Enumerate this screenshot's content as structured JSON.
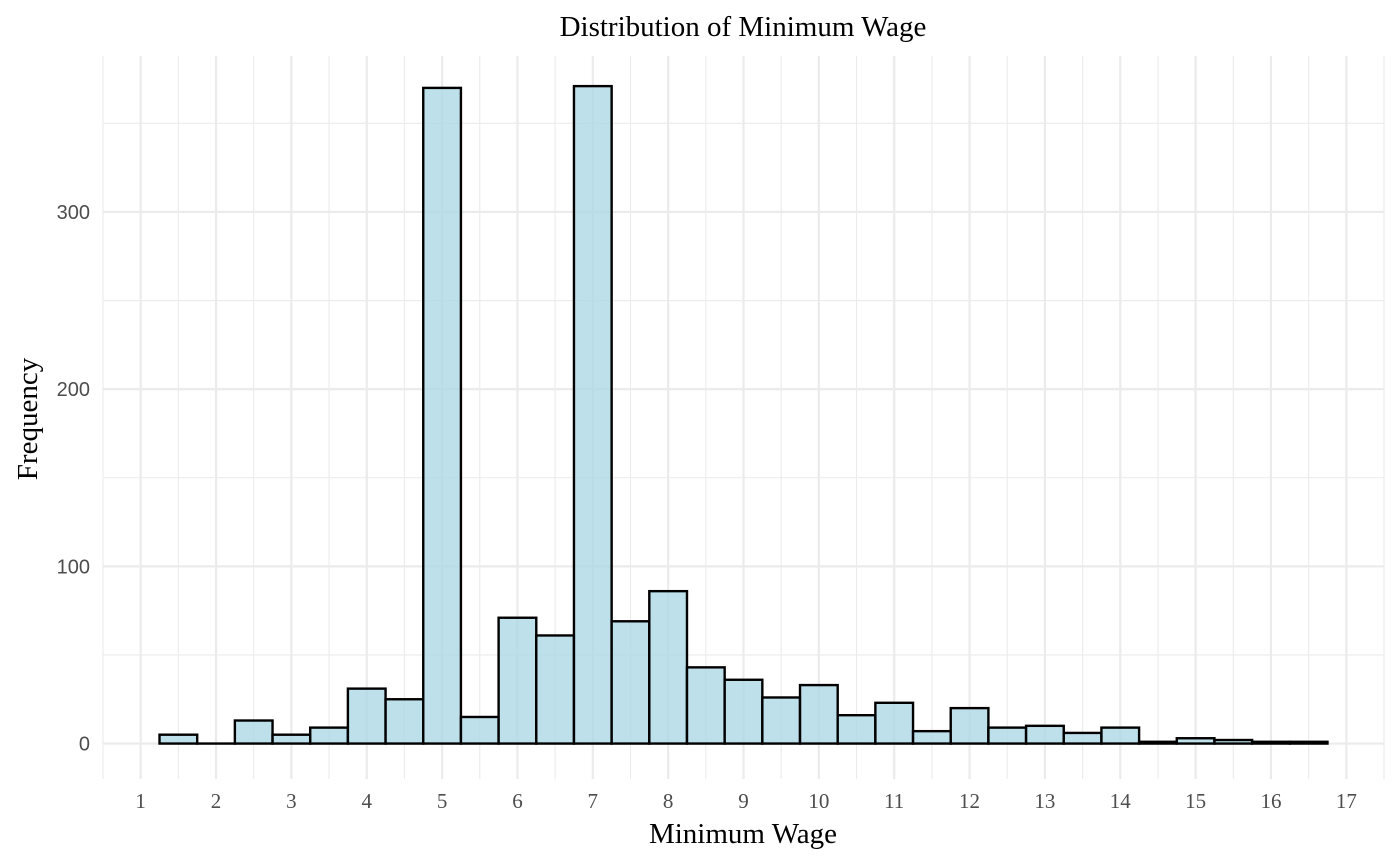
{
  "chart_data": {
    "type": "bar",
    "title": "Distribution of Minimum Wage",
    "xlabel": "Minimum Wage",
    "ylabel": "Frequency",
    "fill_color": "#add8e6",
    "fill_opacity": 0.8,
    "outline_color": "#000000",
    "xlim": [
      0.5,
      17.5
    ],
    "ylim": [
      -20,
      388
    ],
    "xticks": [
      "1",
      "2",
      "3",
      "4",
      "5",
      "6",
      "7",
      "8",
      "9",
      "10",
      "11",
      "12",
      "13",
      "14",
      "15",
      "16",
      "17"
    ],
    "yticks": [
      "0",
      "100",
      "200",
      "300"
    ],
    "grid": true,
    "bin_width": 0.5,
    "bins": [
      {
        "x": 1.5,
        "y": 5
      },
      {
        "x": 2.0,
        "y": 0
      },
      {
        "x": 2.5,
        "y": 13
      },
      {
        "x": 3.0,
        "y": 5
      },
      {
        "x": 3.5,
        "y": 9
      },
      {
        "x": 4.0,
        "y": 31
      },
      {
        "x": 4.5,
        "y": 25
      },
      {
        "x": 5.0,
        "y": 370
      },
      {
        "x": 5.5,
        "y": 15
      },
      {
        "x": 6.0,
        "y": 71
      },
      {
        "x": 6.5,
        "y": 61
      },
      {
        "x": 7.0,
        "y": 371
      },
      {
        "x": 7.5,
        "y": 69
      },
      {
        "x": 8.0,
        "y": 86
      },
      {
        "x": 8.5,
        "y": 43
      },
      {
        "x": 9.0,
        "y": 36
      },
      {
        "x": 9.5,
        "y": 26
      },
      {
        "x": 10.0,
        "y": 33
      },
      {
        "x": 10.5,
        "y": 16
      },
      {
        "x": 11.0,
        "y": 23
      },
      {
        "x": 11.5,
        "y": 7
      },
      {
        "x": 12.0,
        "y": 20
      },
      {
        "x": 12.5,
        "y": 9
      },
      {
        "x": 13.0,
        "y": 10
      },
      {
        "x": 13.5,
        "y": 6
      },
      {
        "x": 14.0,
        "y": 9
      },
      {
        "x": 14.5,
        "y": 1
      },
      {
        "x": 15.0,
        "y": 3
      },
      {
        "x": 15.5,
        "y": 2
      },
      {
        "x": 16.0,
        "y": 1
      },
      {
        "x": 16.5,
        "y": 1
      }
    ]
  }
}
